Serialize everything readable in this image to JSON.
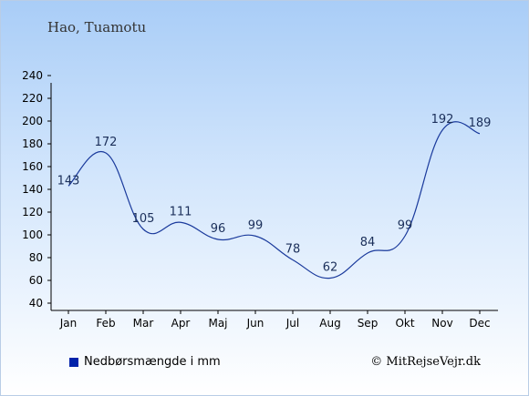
{
  "chart_data": {
    "type": "line",
    "title": "Hao, Tuamotu",
    "categories": [
      "Jan",
      "Feb",
      "Mar",
      "Apr",
      "Maj",
      "Jun",
      "Jul",
      "Aug",
      "Sep",
      "Okt",
      "Nov",
      "Dec"
    ],
    "series": [
      {
        "name": "Nedbørsmængde i mm",
        "values": [
          143,
          172,
          105,
          111,
          96,
          99,
          78,
          62,
          84,
          99,
          192,
          189
        ],
        "color": "#1a3a9c"
      }
    ],
    "ylim": [
      40,
      240
    ],
    "yticks": [
      40,
      60,
      80,
      100,
      120,
      140,
      160,
      180,
      200,
      220,
      240
    ],
    "grid": false,
    "legend_position": "bottom-left"
  },
  "legend": {
    "label": "Nedbørsmængde i mm",
    "color": "#0022aa"
  },
  "copyright": "© MitRejseVejr.dk"
}
